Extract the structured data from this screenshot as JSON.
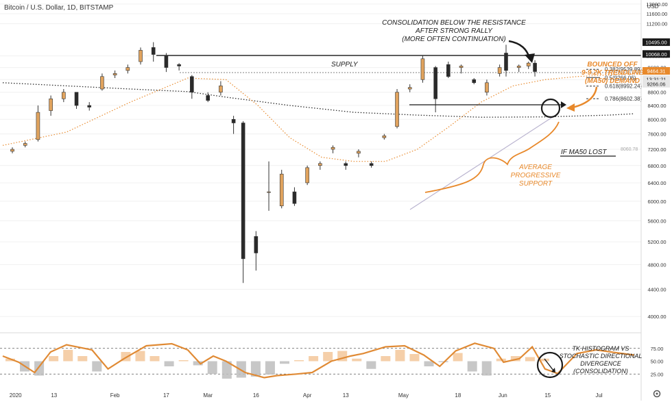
{
  "header": {
    "symbol_title": "Bitcoin / U.S. Dollar",
    "interval": "1D",
    "exchange": "BITSTAMP",
    "currency": "USD"
  },
  "colors": {
    "bull": "#E0A35E",
    "bear": "#2A2A2A",
    "accent": "#E8892B",
    "annotation": "#1A1A1A",
    "grid": "#F0F0F0",
    "trendline": "#B9B3CF"
  },
  "chart_data": [
    {
      "type": "candlestick",
      "title": "Bitcoin / U.S. Dollar · 1D · BITSTAMP",
      "y_axis": {
        "label": "USD",
        "scale": "log",
        "range": [
          3850,
          12000
        ],
        "ticks": [
          4000,
          4400,
          4800,
          5200,
          5600,
          6000,
          6400,
          6800,
          7200,
          7600,
          8000,
          8400,
          8800,
          9200,
          9600,
          10000,
          11200,
          11600,
          12000
        ]
      },
      "x_axis": {
        "ticks": [
          "2020",
          "13",
          "Feb",
          "17",
          "Mar",
          "16",
          "Apr",
          "13",
          "May",
          "18",
          "Jun",
          "15",
          "Jul"
        ],
        "range": [
          "2019-12-28",
          "2020-07-12"
        ]
      },
      "price_tags": [
        {
          "value": "10495.00",
          "style": "dark"
        },
        {
          "value": "10068.00",
          "style": "dark"
        },
        {
          "value": "9464.31",
          "style": "orange"
        },
        {
          "value": "13:31:21",
          "style": "light"
        },
        {
          "value": "9266.06",
          "style": "light"
        }
      ],
      "fibonacci_levels": [
        {
          "ratio": "0.382",
          "label": "0.382(9539.89)",
          "price": 9539.89
        },
        {
          "ratio": "0.5",
          "label": "0.5(9266.06)",
          "price": 9266.06
        },
        {
          "ratio": "0.618",
          "label": "0.618(8992.24)",
          "price": 8992.24
        },
        {
          "ratio": "0.786",
          "label": "0.786(8602.38)",
          "price": 8602.38
        }
      ],
      "moving_averages": [
        {
          "color": "dark-dotted",
          "points": [
            [
              0,
              9100
            ],
            [
              20,
              9000
            ],
            [
              40,
              8900
            ],
            [
              58,
              8820
            ],
            [
              70,
              8650
            ],
            [
              90,
              8400
            ],
            [
              110,
              8200
            ],
            [
              130,
              8120
            ],
            [
              150,
              8060
            ],
            [
              170,
              8070
            ],
            [
              190,
              8120
            ],
            [
              198,
              8160
            ]
          ]
        },
        {
          "color": "orange-dotted",
          "points": [
            [
              0,
              7300
            ],
            [
              20,
              7650
            ],
            [
              40,
              8500
            ],
            [
              58,
              9250
            ],
            [
              70,
              9200
            ],
            [
              80,
              8400
            ],
            [
              90,
              7500
            ],
            [
              100,
              7000
            ],
            [
              110,
              6900
            ],
            [
              120,
              6900
            ],
            [
              130,
              7200
            ],
            [
              140,
              7800
            ],
            [
              150,
              8500
            ],
            [
              160,
              9000
            ],
            [
              170,
              9200
            ],
            [
              180,
              9300
            ],
            [
              190,
              9350
            ],
            [
              198,
              9400
            ]
          ]
        }
      ],
      "candles": [
        {
          "date": "2019-12-31",
          "open": 7150,
          "high": 7250,
          "low": 7100,
          "close": 7200
        },
        {
          "date": "2020-01-04",
          "open": 7300,
          "high": 7400,
          "low": 7250,
          "close": 7350
        },
        {
          "date": "2020-01-08",
          "open": 7450,
          "high": 8400,
          "low": 7400,
          "close": 8200
        },
        {
          "date": "2020-01-12",
          "open": 8250,
          "high": 8700,
          "low": 8100,
          "close": 8600
        },
        {
          "date": "2020-01-16",
          "open": 8600,
          "high": 8900,
          "low": 8500,
          "close": 8800
        },
        {
          "date": "2020-01-20",
          "open": 8800,
          "high": 8800,
          "low": 8300,
          "close": 8400
        },
        {
          "date": "2020-01-24",
          "open": 8400,
          "high": 8500,
          "low": 8250,
          "close": 8350
        },
        {
          "date": "2020-01-28",
          "open": 8900,
          "high": 9400,
          "low": 8850,
          "close": 9300
        },
        {
          "date": "2020-02-01",
          "open": 9350,
          "high": 9500,
          "low": 9250,
          "close": 9400
        },
        {
          "date": "2020-02-05",
          "open": 9500,
          "high": 9700,
          "low": 9400,
          "close": 9600
        },
        {
          "date": "2020-02-09",
          "open": 9800,
          "high": 10300,
          "low": 9700,
          "close": 10200
        },
        {
          "date": "2020-02-13",
          "open": 10300,
          "high": 10495,
          "low": 9800,
          "close": 10050
        },
        {
          "date": "2020-02-17",
          "open": 10000,
          "high": 10100,
          "low": 9450,
          "close": 9600
        },
        {
          "date": "2020-02-21",
          "open": 9700,
          "high": 9750,
          "low": 9500,
          "close": 9650
        },
        {
          "date": "2020-02-25",
          "open": 9300,
          "high": 9350,
          "low": 8600,
          "close": 8800
        },
        {
          "date": "2020-03-01",
          "open": 8700,
          "high": 8800,
          "low": 8500,
          "close": 8550
        },
        {
          "date": "2020-03-05",
          "open": 8800,
          "high": 9150,
          "low": 8700,
          "close": 9000
        },
        {
          "date": "2020-03-09",
          "open": 8000,
          "high": 8100,
          "low": 7600,
          "close": 7900
        },
        {
          "date": "2020-03-12",
          "open": 7900,
          "high": 7950,
          "low": 4500,
          "close": 4900
        },
        {
          "date": "2020-03-16",
          "open": 5300,
          "high": 5400,
          "low": 4700,
          "close": 5000
        },
        {
          "date": "2020-03-20",
          "open": 6200,
          "high": 6900,
          "low": 5800,
          "close": 6200
        },
        {
          "date": "2020-03-24",
          "open": 5900,
          "high": 6700,
          "low": 5850,
          "close": 6600
        },
        {
          "date": "2020-03-28",
          "open": 6200,
          "high": 6300,
          "low": 5900,
          "close": 5950
        },
        {
          "date": "2020-04-01",
          "open": 6400,
          "high": 6800,
          "low": 6350,
          "close": 6750
        },
        {
          "date": "2020-04-05",
          "open": 6800,
          "high": 6900,
          "low": 6700,
          "close": 6850
        },
        {
          "date": "2020-04-09",
          "open": 7200,
          "high": 7300,
          "low": 7100,
          "close": 7250
        },
        {
          "date": "2020-04-13",
          "open": 6850,
          "high": 6900,
          "low": 6700,
          "close": 6800
        },
        {
          "date": "2020-04-17",
          "open": 7100,
          "high": 7200,
          "low": 7000,
          "close": 7150
        },
        {
          "date": "2020-04-21",
          "open": 6850,
          "high": 6900,
          "low": 6750,
          "close": 6800
        },
        {
          "date": "2020-04-25",
          "open": 7500,
          "high": 7600,
          "low": 7450,
          "close": 7550
        },
        {
          "date": "2020-04-29",
          "open": 7800,
          "high": 8900,
          "low": 7750,
          "close": 8800
        },
        {
          "date": "2020-05-03",
          "open": 8900,
          "high": 9050,
          "low": 8800,
          "close": 8950
        },
        {
          "date": "2020-05-07",
          "open": 9200,
          "high": 10000,
          "low": 9100,
          "close": 9900
        },
        {
          "date": "2020-05-11",
          "open": 9600,
          "high": 9650,
          "low": 8200,
          "close": 8600
        },
        {
          "date": "2020-05-15",
          "open": 9700,
          "high": 9800,
          "low": 9250,
          "close": 9300
        },
        {
          "date": "2020-05-19",
          "open": 9600,
          "high": 9700,
          "low": 9400,
          "close": 9650
        },
        {
          "date": "2020-05-23",
          "open": 9200,
          "high": 9250,
          "low": 9050,
          "close": 9100
        },
        {
          "date": "2020-05-27",
          "open": 8800,
          "high": 9200,
          "low": 8700,
          "close": 9100
        },
        {
          "date": "2020-05-31",
          "open": 9400,
          "high": 9700,
          "low": 9300,
          "close": 9600
        },
        {
          "date": "2020-06-02",
          "open": 10100,
          "high": 10400,
          "low": 9300,
          "close": 9500
        },
        {
          "date": "2020-06-06",
          "open": 9600,
          "high": 9700,
          "low": 9450,
          "close": 9650
        },
        {
          "date": "2020-06-09",
          "open": 9650,
          "high": 9800,
          "low": 9550,
          "close": 9750
        },
        {
          "date": "2020-06-11",
          "open": 9750,
          "high": 9850,
          "low": 9300,
          "close": 9464
        }
      ]
    },
    {
      "type": "area",
      "title": "TK Histogram / Stochastic",
      "y_axis": {
        "range": [
          0,
          100
        ],
        "ticks": [
          25.0,
          50.0,
          75.0
        ],
        "tick_labels": [
          "25.00",
          "50.00",
          "75.00"
        ]
      },
      "series": [
        {
          "points": [
            [
              0,
              60
            ],
            [
              5,
              48
            ],
            [
              10,
              28
            ],
            [
              15,
              68
            ],
            [
              20,
              82
            ],
            [
              28,
              72
            ],
            [
              33,
              35
            ],
            [
              38,
              55
            ],
            [
              45,
              80
            ],
            [
              53,
              84
            ],
            [
              58,
              72
            ],
            [
              62,
              45
            ],
            [
              66,
              60
            ],
            [
              70,
              50
            ],
            [
              76,
              28
            ],
            [
              82,
              18
            ],
            [
              86,
              22
            ],
            [
              92,
              25
            ],
            [
              97,
              28
            ],
            [
              103,
              50
            ],
            [
              109,
              60
            ],
            [
              113,
              65
            ],
            [
              120,
              78
            ],
            [
              126,
              80
            ],
            [
              132,
              62
            ],
            [
              137,
              40
            ],
            [
              142,
              70
            ],
            [
              148,
              85
            ],
            [
              154,
              75
            ],
            [
              157,
              48
            ],
            [
              162,
              55
            ],
            [
              166,
              78
            ],
            [
              170,
              35
            ],
            [
              174,
              26
            ],
            [
              180,
              65
            ],
            [
              186,
              72
            ],
            [
              193,
              66
            ],
            [
              198,
              62
            ]
          ]
        }
      ],
      "histogram": [
        55,
        30,
        22,
        60,
        72,
        60,
        30,
        50,
        68,
        70,
        60,
        40,
        52,
        42,
        25,
        16,
        18,
        20,
        24,
        45,
        52,
        60,
        68,
        70,
        55,
        35,
        60,
        72,
        64,
        40,
        48,
        66,
        30,
        22,
        55,
        60,
        58,
        55
      ]
    }
  ],
  "annotations": {
    "consolidation_title": [
      "CONSOLIDATION BELOW THE RESISTANCE",
      "AFTER STRONG RALLY",
      "(MORE OFTEN CONTINUATION)"
    ],
    "supply": "SUPPLY",
    "bounced": [
      "BOUNCED OFF",
      "9-9.2K TRENDLINE",
      "(MA50) DEMAND"
    ],
    "ma50_lost": "IF MA50 LOST",
    "ma50_line_label": "8060.78",
    "average_support": [
      "AVERAGE",
      "PROGRESSIVE",
      "SUPPORT"
    ],
    "tk_histogram": [
      "TK HISTOGRAM VS",
      "STOCHASTIC DIRECTIONAL",
      "DIVERGENCE",
      "(CONSOLIDATION)"
    ]
  },
  "toolbar": {
    "settings_icon": "gear-icon"
  }
}
